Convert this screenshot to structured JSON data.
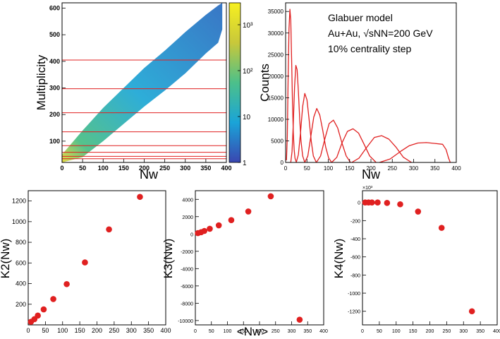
{
  "chart_data": [
    {
      "type": "heatmap",
      "id": "heatmap",
      "xlabel": "Nw",
      "ylabel": "Multiplicity",
      "xlim": [
        0,
        400
      ],
      "ylim": [
        20,
        620
      ],
      "xticks": [
        0,
        50,
        100,
        150,
        200,
        250,
        300,
        350,
        400
      ],
      "yticks": [
        100,
        200,
        300,
        400,
        500,
        600
      ],
      "colorbar": {
        "min": 1,
        "max": 3000,
        "scale": "log",
        "ticks": [
          "1",
          "10",
          "10²",
          "10³"
        ],
        "tick_values": [
          1,
          10,
          100,
          1000
        ]
      },
      "centrality_cut_lines": [
        34,
        43,
        58,
        83,
        135,
        207,
        297,
        405
      ],
      "band_upper": {
        "x": [
          0,
          50,
          100,
          150,
          200,
          250,
          300,
          350,
          380,
          390
        ],
        "y": [
          50,
          140,
          225,
          300,
          375,
          440,
          510,
          575,
          610,
          620
        ]
      },
      "band_lower": {
        "x": [
          0,
          50,
          100,
          150,
          200,
          250,
          300,
          350,
          380,
          390
        ],
        "y": [
          20,
          40,
          100,
          165,
          230,
          290,
          355,
          430,
          470,
          520
        ]
      },
      "line_color": "#e02020"
    },
    {
      "type": "line",
      "id": "counts",
      "xlabel": "Nw",
      "ylabel": "Counts",
      "xlim": [
        0,
        400
      ],
      "ylim": [
        0,
        37000
      ],
      "xticks": [
        0,
        50,
        100,
        150,
        200,
        250,
        300,
        350,
        400
      ],
      "yticks": [
        0,
        5000,
        10000,
        15000,
        20000,
        25000,
        30000,
        35000
      ],
      "annotation": [
        "Glabuer model",
        "Au+Au, √sNN=200 GeV",
        "10% centrality step"
      ],
      "color": "#e02020",
      "series": [
        {
          "name": "0",
          "x": [
            2,
            4,
            6,
            8,
            10,
            12,
            14,
            16,
            18,
            20,
            22,
            25
          ],
          "y": [
            500,
            6000,
            20000,
            31000,
            35500,
            33000,
            24000,
            14000,
            7000,
            3000,
            1000,
            100
          ]
        },
        {
          "name": "1",
          "x": [
            12,
            15,
            18,
            21,
            24,
            27,
            30,
            33,
            36,
            40,
            45
          ],
          "y": [
            0,
            2500,
            9000,
            17500,
            22500,
            21500,
            16500,
            10000,
            5000,
            1500,
            0
          ]
        },
        {
          "name": "2",
          "x": [
            25,
            30,
            35,
            40,
            45,
            50,
            55,
            60,
            65,
            72
          ],
          "y": [
            0,
            1800,
            7000,
            13000,
            16000,
            14500,
            10000,
            5000,
            1500,
            0
          ]
        },
        {
          "name": "3",
          "x": [
            45,
            52,
            59,
            66,
            73,
            80,
            87,
            94,
            101,
            108
          ],
          "y": [
            0,
            1500,
            6000,
            10500,
            12500,
            11000,
            7500,
            3500,
            1000,
            0
          ]
        },
        {
          "name": "4",
          "x": [
            72,
            82,
            92,
            102,
            112,
            122,
            132,
            142,
            152
          ],
          "y": [
            0,
            1500,
            5500,
            9000,
            9800,
            8000,
            4500,
            1500,
            0
          ]
        },
        {
          "name": "5",
          "x": [
            108,
            120,
            132,
            145,
            158,
            171,
            184,
            197,
            212
          ],
          "y": [
            0,
            1200,
            4500,
            7200,
            7800,
            6800,
            4200,
            1500,
            0
          ]
        },
        {
          "name": "6",
          "x": [
            155,
            172,
            190,
            208,
            225,
            242,
            259,
            276,
            295
          ],
          "y": [
            0,
            1000,
            3500,
            5800,
            6200,
            5400,
            3500,
            1200,
            0
          ]
        },
        {
          "name": "7",
          "x": [
            220,
            245,
            270,
            290,
            310,
            330,
            350,
            368,
            376,
            382,
            386
          ],
          "y": [
            0,
            800,
            2600,
            3900,
            4500,
            4600,
            4400,
            4200,
            3000,
            1000,
            0
          ]
        }
      ]
    },
    {
      "type": "scatter",
      "id": "k2",
      "ylabel": "K2(Nw)",
      "xlim": [
        0,
        400
      ],
      "ylim": [
        0,
        1300
      ],
      "xticks": [
        0,
        50,
        100,
        150,
        200,
        250,
        300,
        350,
        400
      ],
      "yticks": [
        200,
        400,
        600,
        800,
        1000,
        1200
      ],
      "color": "#e02020",
      "x": [
        8,
        18,
        28,
        45,
        73,
        112,
        165,
        235,
        325
      ],
      "y": [
        30,
        55,
        90,
        150,
        250,
        395,
        605,
        925,
        1240
      ]
    },
    {
      "type": "scatter",
      "id": "k3",
      "xlabel": "<Nw>",
      "ylabel": "K3(Nw)",
      "xlim": [
        0,
        400
      ],
      "ylim": [
        -10500,
        5000
      ],
      "xticks": [
        0,
        50,
        100,
        150,
        200,
        250,
        300,
        350,
        400
      ],
      "yticks": [
        -10000,
        -8000,
        -6000,
        -4000,
        -2000,
        0,
        2000,
        4000
      ],
      "color": "#e02020",
      "x": [
        8,
        18,
        28,
        45,
        73,
        112,
        165,
        235,
        325
      ],
      "y": [
        100,
        200,
        350,
        600,
        1000,
        1600,
        2600,
        4350,
        -9900
      ]
    },
    {
      "type": "scatter",
      "id": "k4",
      "ylabel": "K4(Nw)",
      "xlim": [
        0,
        400
      ],
      "ylim": [
        -1350,
        130
      ],
      "multiplier": "×10³",
      "xticks": [
        0,
        50,
        100,
        150,
        200,
        250,
        300,
        350,
        400
      ],
      "yticks": [
        -1200,
        -1000,
        -800,
        -600,
        -400,
        -200,
        0
      ],
      "color": "#e02020",
      "x": [
        8,
        18,
        28,
        45,
        73,
        112,
        165,
        235,
        325
      ],
      "y": [
        0,
        0,
        0,
        0,
        -5,
        -20,
        -100,
        -280,
        -1200
      ]
    }
  ]
}
